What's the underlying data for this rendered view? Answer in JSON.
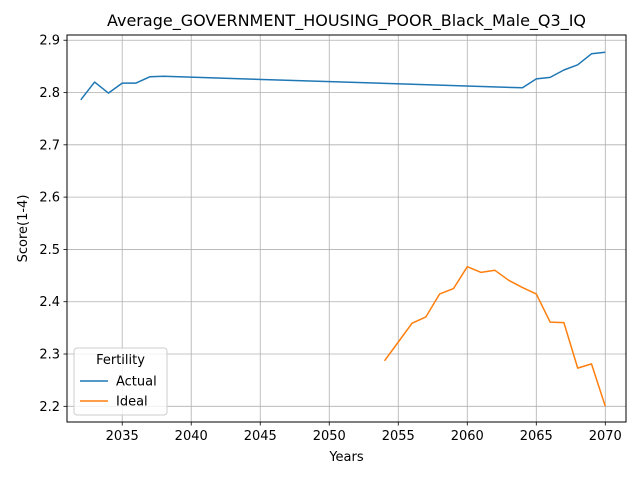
{
  "chart_data": {
    "type": "line",
    "title": "Average_GOVERNMENT_HOUSING_POOR_Black_Male_Q3_IQ",
    "xlabel": "Years",
    "ylabel": "Score(1-4)",
    "xlim": [
      2031,
      2071.5
    ],
    "ylim": [
      2.17,
      2.91
    ],
    "xticks": [
      2035,
      2040,
      2045,
      2050,
      2055,
      2060,
      2065,
      2070
    ],
    "yticks": [
      2.2,
      2.3,
      2.4,
      2.5,
      2.6,
      2.7,
      2.8,
      2.9
    ],
    "grid": true,
    "legend": {
      "title": "Fertility",
      "placement": "lower-left"
    },
    "series": [
      {
        "name": "Actual",
        "color": "#1f77b4",
        "x": [
          2032,
          2033,
          2034,
          2035,
          2036,
          2037,
          2038,
          2064,
          2065,
          2066,
          2067,
          2068,
          2069,
          2070
        ],
        "y": [
          2.786,
          2.82,
          2.799,
          2.818,
          2.818,
          2.83,
          2.831,
          2.809,
          2.826,
          2.829,
          2.843,
          2.853,
          2.874,
          2.877
        ]
      },
      {
        "name": "Ideal",
        "color": "#ff7f0e",
        "x": [
          2054,
          2055,
          2056,
          2057,
          2058,
          2059,
          2060,
          2061,
          2062,
          2063,
          2064,
          2065,
          2066,
          2067,
          2068,
          2069,
          2070
        ],
        "y": [
          2.287,
          2.323,
          2.359,
          2.371,
          2.415,
          2.425,
          2.467,
          2.456,
          2.46,
          2.441,
          2.427,
          2.415,
          2.361,
          2.36,
          2.273,
          2.281,
          2.2
        ]
      }
    ]
  }
}
